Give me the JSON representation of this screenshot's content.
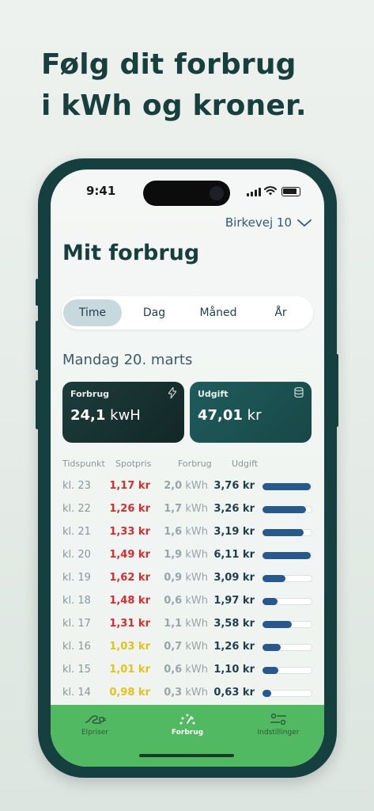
{
  "headline": [
    "Følg dit forbrug",
    "i kWh og kroner."
  ],
  "status_bar": {
    "time": "9:41"
  },
  "address": {
    "label": "Birkevej 10"
  },
  "page_title": "Mit forbrug",
  "period_tabs": [
    {
      "label": "Time",
      "active": true
    },
    {
      "label": "Dag",
      "active": false
    },
    {
      "label": "Måned",
      "active": false
    },
    {
      "label": "År",
      "active": false
    }
  ],
  "date_label": "Mandag 20. marts",
  "cards": {
    "consumption": {
      "label": "Forbrug",
      "value": "24,1",
      "unit": "kwH",
      "icon": "lightning-icon"
    },
    "cost": {
      "label": "Udgift",
      "value": "47,01",
      "unit": "kr",
      "icon": "coins-icon"
    }
  },
  "table": {
    "headers": [
      "Tidspunkt",
      "Spotpris",
      "Forbrug",
      "Udgift"
    ],
    "rows": [
      {
        "time": "kl. 23",
        "price": "1,17 kr",
        "price_color": "#d32f2f",
        "kwh_value": "2,0",
        "kwh_unit": "kWh",
        "cost": "3,76 kr",
        "level": 0.97
      },
      {
        "time": "kl. 22",
        "price": "1,26 kr",
        "price_color": "#d32f2f",
        "kwh_value": "1,7",
        "kwh_unit": "kWh",
        "cost": "3,26 kr",
        "level": 0.87
      },
      {
        "time": "kl. 21",
        "price": "1,33 kr",
        "price_color": "#d32f2f",
        "kwh_value": "1,6",
        "kwh_unit": "kWh",
        "cost": "3,19 kr",
        "level": 0.82
      },
      {
        "time": "kl. 20",
        "price": "1,49 kr",
        "price_color": "#d32f2f",
        "kwh_value": "1,9",
        "kwh_unit": "kWh",
        "cost": "6,11 kr",
        "level": 0.97
      },
      {
        "time": "kl. 19",
        "price": "1,62 kr",
        "price_color": "#d32f2f",
        "kwh_value": "0,9",
        "kwh_unit": "kWh",
        "cost": "3,09 kr",
        "level": 0.46
      },
      {
        "time": "kl. 18",
        "price": "1,48 kr",
        "price_color": "#d32f2f",
        "kwh_value": "0,6",
        "kwh_unit": "kWh",
        "cost": "1,97 kr",
        "level": 0.3
      },
      {
        "time": "kl. 17",
        "price": "1,31 kr",
        "price_color": "#d32f2f",
        "kwh_value": "1,1",
        "kwh_unit": "kWh",
        "cost": "3,58 kr",
        "level": 0.58
      },
      {
        "time": "kl. 16",
        "price": "1,03 kr",
        "price_color": "#e3c21a",
        "kwh_value": "0,7",
        "kwh_unit": "kWh",
        "cost": "1,26 kr",
        "level": 0.37
      },
      {
        "time": "kl. 15",
        "price": "1,01 kr",
        "price_color": "#e3c21a",
        "kwh_value": "0,6",
        "kwh_unit": "kWh",
        "cost": "1,10 kr",
        "level": 0.32
      },
      {
        "time": "kl. 14",
        "price": "0,98 kr",
        "price_color": "#e3c21a",
        "kwh_value": "0,3",
        "kwh_unit": "kWh",
        "cost": "0,63 kr",
        "level": 0.17
      }
    ]
  },
  "bottom_nav": [
    {
      "label": "Elpriser",
      "icon": "plug-icon",
      "active": false
    },
    {
      "label": "Forbrug",
      "icon": "meter-icon",
      "active": true
    },
    {
      "label": "Indstillinger",
      "icon": "sliders-icon",
      "active": false
    }
  ],
  "colors": {
    "brand_dark": "#163f3d",
    "nav_green": "#52b963",
    "bar_blue": "#28598c",
    "price_high": "#d32f2f",
    "price_low": "#e3c21a"
  }
}
